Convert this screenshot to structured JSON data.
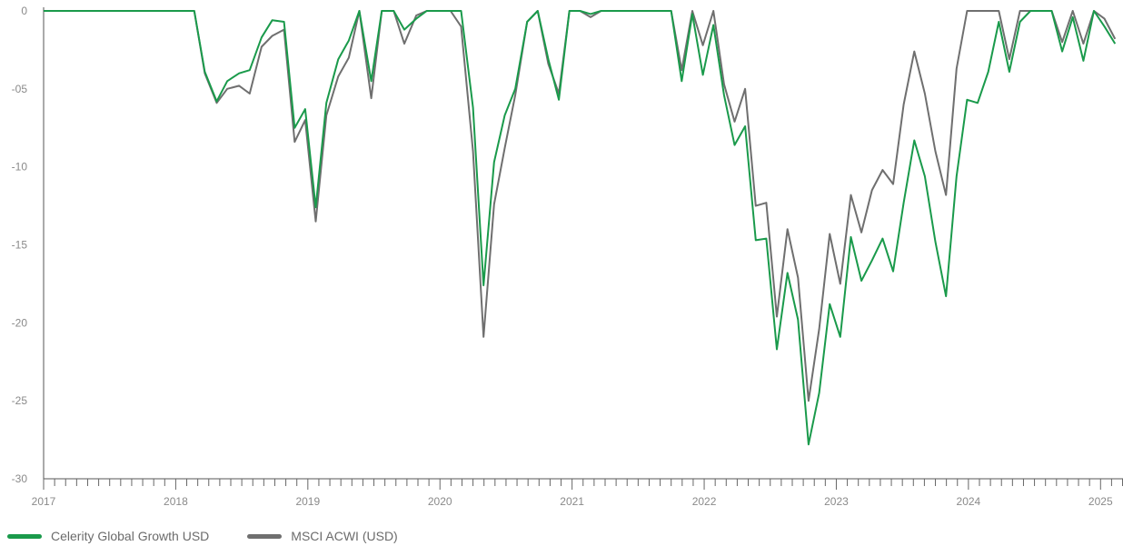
{
  "chart_data": {
    "type": "line",
    "x_start_year": 2017,
    "x_end_year": 2025.17,
    "x_ticks": [
      "2017",
      "2018",
      "2019",
      "2020",
      "2021",
      "2022",
      "2023",
      "2024",
      "2025"
    ],
    "ylim": [
      -30,
      0
    ],
    "y_ticks": [
      0,
      -5,
      -10,
      -15,
      -20,
      -25,
      -30
    ],
    "y_tick_labels": [
      "0",
      "-05",
      "-10",
      "-15",
      "-20",
      "-25",
      "-30"
    ],
    "series": [
      {
        "name": "Celerity Global Growth USD",
        "color": "#1a9a4b",
        "values": [
          [
            2017.0,
            0
          ],
          [
            2018.14,
            0
          ],
          [
            2018.22,
            -3.9
          ],
          [
            2018.31,
            -5.8
          ],
          [
            2018.39,
            -4.5
          ],
          [
            2018.48,
            -4.0
          ],
          [
            2018.56,
            -3.8
          ],
          [
            2018.65,
            -1.7
          ],
          [
            2018.73,
            -0.6
          ],
          [
            2018.82,
            -0.7
          ],
          [
            2018.9,
            -7.5
          ],
          [
            2018.98,
            -6.3
          ],
          [
            2019.06,
            -12.6
          ],
          [
            2019.14,
            -5.9
          ],
          [
            2019.23,
            -3.1
          ],
          [
            2019.31,
            -1.9
          ],
          [
            2019.39,
            0
          ],
          [
            2019.48,
            -4.5
          ],
          [
            2019.56,
            0
          ],
          [
            2019.65,
            0
          ],
          [
            2019.73,
            -1.2
          ],
          [
            2019.82,
            -0.5
          ],
          [
            2019.9,
            0
          ],
          [
            2020.0,
            0
          ],
          [
            2020.16,
            0
          ],
          [
            2020.25,
            -6.2
          ],
          [
            2020.33,
            -17.6
          ],
          [
            2020.41,
            -9.7
          ],
          [
            2020.49,
            -6.7
          ],
          [
            2020.57,
            -5.0
          ],
          [
            2020.66,
            -0.7
          ],
          [
            2020.74,
            0
          ],
          [
            2020.82,
            -3.1
          ],
          [
            2020.9,
            -5.7
          ],
          [
            2020.98,
            0
          ],
          [
            2021.06,
            0
          ],
          [
            2021.14,
            -0.2
          ],
          [
            2021.22,
            0
          ],
          [
            2021.75,
            0
          ],
          [
            2021.83,
            -4.5
          ],
          [
            2021.91,
            -0.2
          ],
          [
            2021.99,
            -4.1
          ],
          [
            2022.07,
            -0.9
          ],
          [
            2022.15,
            -5.4
          ],
          [
            2022.23,
            -8.6
          ],
          [
            2022.31,
            -7.4
          ],
          [
            2022.39,
            -14.7
          ],
          [
            2022.47,
            -14.6
          ],
          [
            2022.55,
            -21.7
          ],
          [
            2022.63,
            -16.8
          ],
          [
            2022.71,
            -19.8
          ],
          [
            2022.79,
            -27.8
          ],
          [
            2022.87,
            -24.5
          ],
          [
            2022.95,
            -18.8
          ],
          [
            2023.03,
            -20.9
          ],
          [
            2023.11,
            -14.5
          ],
          [
            2023.19,
            -17.3
          ],
          [
            2023.27,
            -16.0
          ],
          [
            2023.35,
            -14.6
          ],
          [
            2023.43,
            -16.7
          ],
          [
            2023.51,
            -12.3
          ],
          [
            2023.59,
            -8.3
          ],
          [
            2023.67,
            -10.6
          ],
          [
            2023.75,
            -14.8
          ],
          [
            2023.83,
            -18.3
          ],
          [
            2023.91,
            -10.6
          ],
          [
            2023.99,
            -5.7
          ],
          [
            2024.07,
            -5.9
          ],
          [
            2024.15,
            -3.9
          ],
          [
            2024.23,
            -0.7
          ],
          [
            2024.31,
            -3.9
          ],
          [
            2024.39,
            -0.7
          ],
          [
            2024.47,
            0
          ],
          [
            2024.63,
            0
          ],
          [
            2024.71,
            -2.6
          ],
          [
            2024.79,
            -0.4
          ],
          [
            2024.87,
            -3.2
          ],
          [
            2024.95,
            0
          ],
          [
            2025.03,
            -1.0
          ],
          [
            2025.11,
            -2.1
          ]
        ]
      },
      {
        "name": "MSCI ACWI (USD)",
        "color": "#6f6f6f",
        "values": [
          [
            2017.0,
            0
          ],
          [
            2018.14,
            0
          ],
          [
            2018.22,
            -4.0
          ],
          [
            2018.31,
            -5.9
          ],
          [
            2018.39,
            -5.0
          ],
          [
            2018.48,
            -4.8
          ],
          [
            2018.56,
            -5.3
          ],
          [
            2018.65,
            -2.3
          ],
          [
            2018.73,
            -1.6
          ],
          [
            2018.82,
            -1.2
          ],
          [
            2018.9,
            -8.4
          ],
          [
            2018.98,
            -7.0
          ],
          [
            2019.06,
            -13.5
          ],
          [
            2019.14,
            -6.7
          ],
          [
            2019.23,
            -4.2
          ],
          [
            2019.31,
            -3.0
          ],
          [
            2019.39,
            0
          ],
          [
            2019.48,
            -5.6
          ],
          [
            2019.56,
            0
          ],
          [
            2019.65,
            0
          ],
          [
            2019.73,
            -2.1
          ],
          [
            2019.82,
            -0.3
          ],
          [
            2019.9,
            0
          ],
          [
            2020.0,
            0
          ],
          [
            2020.08,
            0
          ],
          [
            2020.16,
            -1.0
          ],
          [
            2020.25,
            -9.0
          ],
          [
            2020.33,
            -20.9
          ],
          [
            2020.41,
            -12.4
          ],
          [
            2020.49,
            -8.8
          ],
          [
            2020.57,
            -5.4
          ],
          [
            2020.66,
            -0.7
          ],
          [
            2020.74,
            0
          ],
          [
            2020.82,
            -3.4
          ],
          [
            2020.9,
            -5.3
          ],
          [
            2020.98,
            0
          ],
          [
            2021.06,
            0
          ],
          [
            2021.14,
            -0.4
          ],
          [
            2021.22,
            0
          ],
          [
            2021.75,
            0
          ],
          [
            2021.83,
            -3.8
          ],
          [
            2021.91,
            0
          ],
          [
            2021.99,
            -2.2
          ],
          [
            2022.07,
            0
          ],
          [
            2022.15,
            -4.7
          ],
          [
            2022.23,
            -7.1
          ],
          [
            2022.31,
            -5.0
          ],
          [
            2022.39,
            -12.5
          ],
          [
            2022.47,
            -12.3
          ],
          [
            2022.55,
            -19.6
          ],
          [
            2022.63,
            -14.0
          ],
          [
            2022.71,
            -17.1
          ],
          [
            2022.79,
            -25.0
          ],
          [
            2022.87,
            -20.4
          ],
          [
            2022.95,
            -14.3
          ],
          [
            2023.03,
            -17.5
          ],
          [
            2023.11,
            -11.8
          ],
          [
            2023.19,
            -14.2
          ],
          [
            2023.27,
            -11.5
          ],
          [
            2023.35,
            -10.2
          ],
          [
            2023.43,
            -11.1
          ],
          [
            2023.51,
            -6.0
          ],
          [
            2023.59,
            -2.6
          ],
          [
            2023.67,
            -5.3
          ],
          [
            2023.75,
            -9.0
          ],
          [
            2023.83,
            -11.8
          ],
          [
            2023.91,
            -3.7
          ],
          [
            2023.99,
            0
          ],
          [
            2024.23,
            0
          ],
          [
            2024.31,
            -3.1
          ],
          [
            2024.39,
            0
          ],
          [
            2024.47,
            0
          ],
          [
            2024.63,
            0
          ],
          [
            2024.71,
            -2.0
          ],
          [
            2024.79,
            0
          ],
          [
            2024.87,
            -2.1
          ],
          [
            2024.95,
            0
          ],
          [
            2025.03,
            -0.5
          ],
          [
            2025.11,
            -1.8
          ]
        ]
      }
    ],
    "legend_position": "bottom-left",
    "grid": false
  }
}
